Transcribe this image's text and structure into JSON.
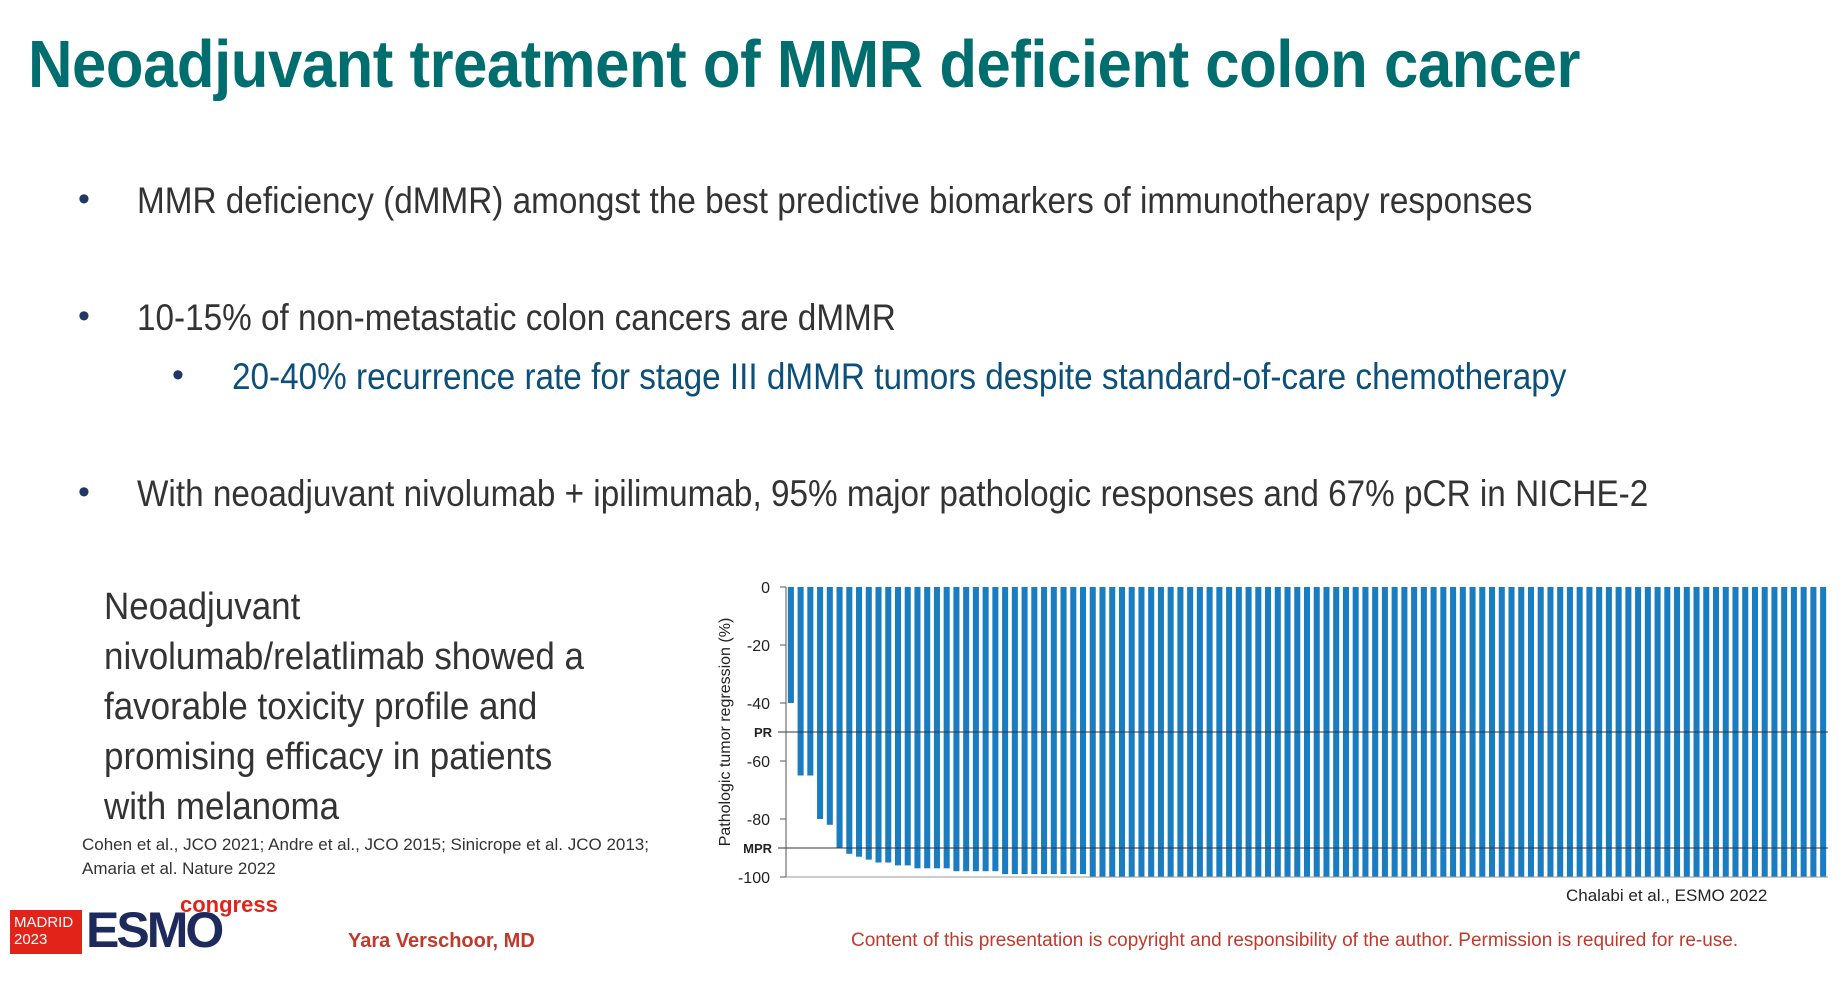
{
  "slide": {
    "title": "Neoadjuvant treatment of MMR deficient colon cancer",
    "bullets": [
      {
        "dot": "•",
        "text": "MMR deficiency (dMMR) amongst the best predictive biomarkers of immunotherapy responses"
      },
      {
        "dot": "•",
        "text": "10-15% of non-metastatic colon cancers are dMMR"
      },
      {
        "dot": "•",
        "text": "20-40% recurrence rate for stage III dMMR tumors despite standard-of-care chemotherapy"
      },
      {
        "dot": "•",
        "text": "With neoadjuvant nivolumab + ipilimumab, 95% major pathologic responses and 67% pCR in NICHE-2"
      }
    ],
    "side_text": "Neoadjuvant nivolumab/relatlimab showed a favorable toxicity profile and promising efficacy in patients with melanoma",
    "references": "Cohen et al., JCO 2021; Andre et al., JCO 2015; Sinicrope et al. JCO 2013; Amaria et al. Nature 2022",
    "chart_credit": "Chalabi et al., ESMO 2022",
    "author": "Yara Verschoor, MD",
    "copyright": "Content of this presentation is copyright and responsibility of the author. Permission is required for re-use.",
    "logo": {
      "city": "MADRID",
      "year": "2023",
      "brand": "ESMO",
      "suffix": "congress"
    }
  },
  "colors": {
    "title": "#006e6e",
    "bar": "#1a7cc1",
    "accent_red": "#e2231a"
  },
  "chart_data": {
    "type": "bar",
    "title": "",
    "xlabel": "",
    "ylabel": "Pathologic tumor regression (%)",
    "ylim": [
      -100,
      0
    ],
    "yticks": [
      0,
      -20,
      -40,
      -60,
      -80,
      -100
    ],
    "reference_lines": [
      {
        "label": "PR",
        "value": -50
      },
      {
        "label": "MPR",
        "value": -90
      }
    ],
    "series": [
      {
        "values": [
          -40,
          -65,
          -65,
          -80,
          -82,
          -90,
          -92,
          -93,
          -94,
          -95,
          -95,
          -96,
          -96,
          -97,
          -97,
          -97,
          -97,
          -98,
          -98,
          -98,
          -98,
          -98,
          -99,
          -99,
          -99,
          -99,
          -99,
          -99,
          -99,
          -99,
          -99,
          -100,
          -100,
          -100,
          -100,
          -100,
          -100,
          -100,
          -100,
          -100,
          -100,
          -100,
          -100,
          -100,
          -100,
          -100,
          -100,
          -100,
          -100,
          -100,
          -100,
          -100,
          -100,
          -100,
          -100,
          -100,
          -100,
          -100,
          -100,
          -100,
          -100,
          -100,
          -100,
          -100,
          -100,
          -100,
          -100,
          -100,
          -100,
          -100,
          -100,
          -100,
          -100,
          -100,
          -100,
          -100,
          -100,
          -100,
          -100,
          -100,
          -100,
          -100,
          -100,
          -100,
          -100,
          -100,
          -100,
          -100,
          -100,
          -100,
          -100,
          -100,
          -100,
          -100,
          -100,
          -100,
          -100,
          -100,
          -100,
          -100,
          -100,
          -100,
          -100,
          -100,
          -100,
          -100,
          -100
        ]
      }
    ]
  }
}
